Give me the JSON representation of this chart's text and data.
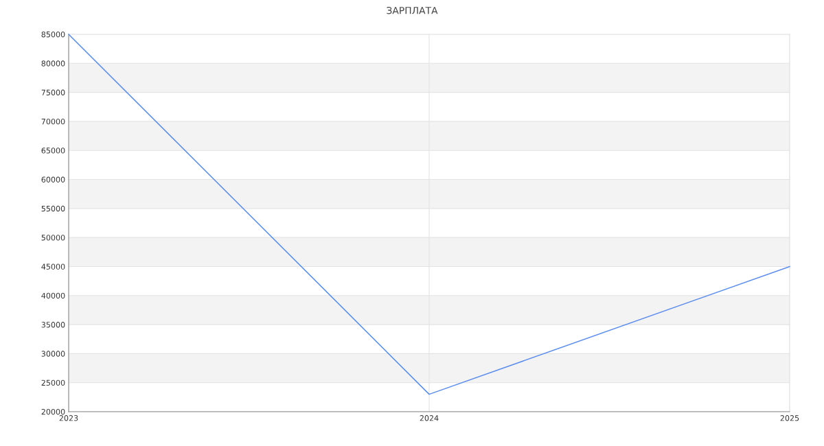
{
  "chart_data": {
    "type": "line",
    "title": "ЗАРПЛАТА",
    "x": [
      2023,
      2024,
      2025
    ],
    "series": [
      {
        "color": "#5b8def",
        "values": [
          85000,
          23000,
          45000
        ]
      }
    ],
    "xlim": [
      2023,
      2025
    ],
    "xticks": [
      2023,
      2024,
      2025
    ],
    "ylim": [
      20000,
      85000
    ],
    "yticks": [
      20000,
      25000,
      30000,
      35000,
      40000,
      45000,
      50000,
      55000,
      60000,
      65000,
      70000,
      75000,
      80000,
      85000
    ],
    "grid": true,
    "marker": "none",
    "line_style": "solid"
  }
}
